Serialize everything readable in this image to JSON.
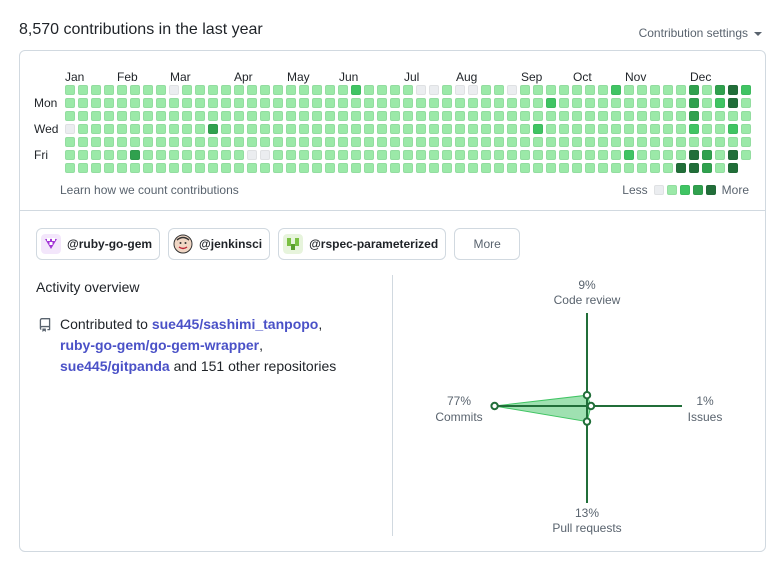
{
  "header": {
    "title": "8,570 contributions in the last year",
    "settings_label": "Contribution settings"
  },
  "calendar": {
    "months": [
      "Jan",
      "Feb",
      "Mar",
      "Apr",
      "May",
      "Jun",
      "Jul",
      "Aug",
      "Sep",
      "Oct",
      "Nov",
      "Dec"
    ],
    "day_labels": [
      "Mon",
      "Wed",
      "Fri"
    ],
    "colors": [
      "#ebedf0",
      "#9be9a8",
      "#40c463",
      "#30a14e",
      "#216e39"
    ],
    "learn_link": "Learn how we count contributions",
    "legend_less": "Less",
    "legend_more": "More",
    "weeks": 53,
    "levels": {
      "0": "1111111111111111111111111111111111111111111111111111",
      "1": "1111111111111111111111111111111111111111111111113144",
      "2": "1111111111111111111111111111111111111111111111111111",
      "3": "0111111111111111111111111111111111111111111111111111",
      "4": "1111111111111111111111111111111111111111111111111111",
      "5": "1111111111111111111111111111111111111111111111111114",
      "6": "1111111111111111111111111111111111111111111111111114"
    },
    "overrides": [
      {
        "w": 22,
        "d": 0,
        "l": 2
      },
      {
        "w": 37,
        "d": 1,
        "l": 2
      },
      {
        "w": 42,
        "d": 0,
        "l": 2
      },
      {
        "w": 11,
        "d": 3,
        "l": 3
      },
      {
        "w": 5,
        "d": 5,
        "l": 3
      },
      {
        "w": 36,
        "d": 3,
        "l": 2
      },
      {
        "w": 43,
        "d": 5,
        "l": 2
      },
      {
        "w": 48,
        "d": 5,
        "l": 4
      },
      {
        "w": 49,
        "d": 5,
        "l": 3
      },
      {
        "w": 47,
        "d": 6,
        "l": 4
      },
      {
        "w": 48,
        "d": 6,
        "l": 4
      },
      {
        "w": 49,
        "d": 6,
        "l": 3
      },
      {
        "w": 48,
        "d": 0,
        "l": 3
      },
      {
        "w": 48,
        "d": 2,
        "l": 3
      },
      {
        "w": 48,
        "d": 3,
        "l": 2
      },
      {
        "w": 50,
        "d": 1,
        "l": 2
      },
      {
        "w": 51,
        "d": 3,
        "l": 2
      },
      {
        "w": 52,
        "d": 0,
        "l": 2
      },
      {
        "w": 50,
        "d": 0,
        "l": 3
      },
      {
        "w": 51,
        "d": 0,
        "l": 4
      },
      {
        "w": 34,
        "d": 0,
        "l": 0
      },
      {
        "w": 8,
        "d": 0,
        "l": 0
      },
      {
        "w": 27,
        "d": 0,
        "l": 0
      },
      {
        "w": 28,
        "d": 0,
        "l": 0
      },
      {
        "w": 30,
        "d": 0,
        "l": 0
      },
      {
        "w": 31,
        "d": 0,
        "l": 0
      },
      {
        "w": 15,
        "d": 5,
        "l": 0
      },
      {
        "w": 14,
        "d": 5,
        "l": 0
      }
    ]
  },
  "orgs": [
    {
      "label": "@ruby-go-gem",
      "color": "#a335d6"
    },
    {
      "label": "@jenkinsci",
      "color": "#c97b4a"
    },
    {
      "label": "@rspec-parameterized",
      "color": "#7bc043"
    }
  ],
  "more_label": "More",
  "activity": {
    "title": "Activity overview",
    "contributed_to": "Contributed to",
    "repo1": "sue445/sashimi_tanpopo",
    "repo2": "ruby-go-gem/go-gem-wrapper",
    "repo3": "sue445/gitpanda",
    "sep1": ",",
    "sep2": ",",
    "tail": "and 151 other repositories"
  },
  "radar": {
    "code_review_pct": "9%",
    "code_review_label": "Code review",
    "commits_pct": "77%",
    "commits_label": "Commits",
    "issues_pct": "1%",
    "issues_label": "Issues",
    "pr_pct": "13%",
    "pr_label": "Pull requests",
    "values": {
      "code_review": 9,
      "commits": 77,
      "issues": 1,
      "pull_requests": 13
    },
    "line_color": "#216e39",
    "fill_color": "#40c463"
  }
}
